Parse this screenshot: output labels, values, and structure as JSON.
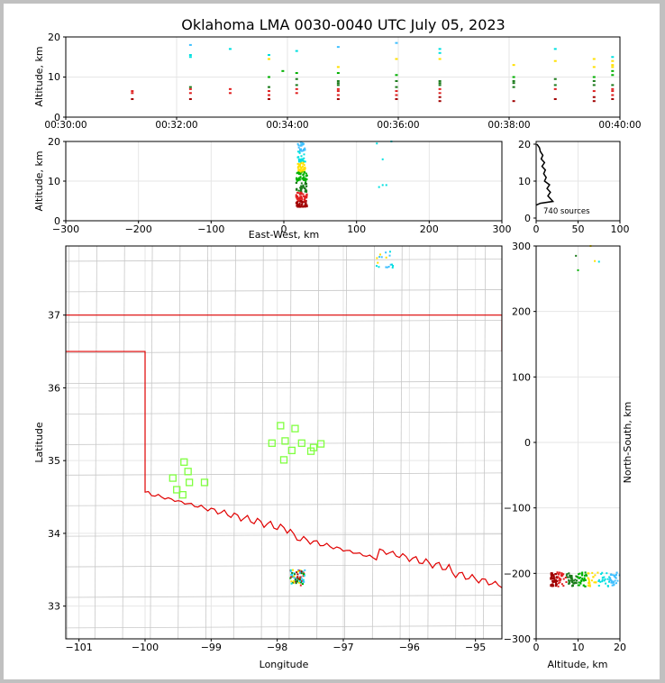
{
  "title": "Oklahoma LMA 0030-0040 UTC July 05, 2023",
  "colors": {
    "background": "#ffffff",
    "frame": "#c0c0c0",
    "state_border": "#e00000",
    "county_border": "#c8c8c8",
    "grid": "#e6e6e6",
    "station_marker": "#80ff40",
    "histogram_line": "#000000"
  },
  "time_panel": {
    "ylabel": "Altitude, km",
    "ytick_labels": [
      "0",
      "10",
      "20"
    ],
    "xtick_labels": [
      "00:30:00",
      "00:32:00",
      "00:34:00",
      "00:36:00",
      "00:38:00",
      "00:40:00"
    ]
  },
  "ew_panel": {
    "ylabel": "Altitude, km",
    "xlabel": "East-West, km",
    "ytick_labels": [
      "0",
      "10",
      "20"
    ],
    "xtick_labels": [
      "−300",
      "−200",
      "−100",
      "0",
      "100",
      "200",
      "300"
    ]
  },
  "hist_panel": {
    "count_label": "740 sources",
    "ytick_labels": [
      "0",
      "10",
      "20"
    ],
    "xtick_labels": [
      "0",
      "50",
      "100"
    ]
  },
  "map_panel": {
    "xlabel": "Longitude",
    "ylabel": "Latitude",
    "ytick_labels": [
      "33",
      "34",
      "35",
      "36",
      "37"
    ],
    "xtick_labels": [
      "−101",
      "−100",
      "−99",
      "−98",
      "−97",
      "−96",
      "−95"
    ]
  },
  "ns_panel": {
    "xlabel": "Altitude, km",
    "ylabel": "North-South, km",
    "ytick_labels": [
      "−300",
      "−200",
      "−100",
      "0",
      "100",
      "200",
      "300"
    ],
    "xtick_labels": [
      "0",
      "10",
      "20"
    ]
  },
  "chart_data": [
    {
      "type": "scatter",
      "name": "time-altitude",
      "xlabel": "",
      "ylabel": "Altitude, km",
      "xlim": [
        "00:30:00",
        "00:40:00"
      ],
      "ylim": [
        0,
        20
      ],
      "grid": true,
      "source_columns": [
        {
          "t": "00:31:12",
          "alt": [
            4.5,
            6.0,
            6.5
          ]
        },
        {
          "t": "00:32:15",
          "alt": [
            4.5,
            6.0,
            7.0,
            7.5,
            15.0,
            15.5,
            18.0
          ]
        },
        {
          "t": "00:32:58",
          "alt": [
            6.0,
            7.0,
            17.0
          ]
        },
        {
          "t": "00:33:40",
          "alt": [
            4.5,
            5.5,
            6.5,
            7.5,
            10.0,
            14.5,
            15.5
          ]
        },
        {
          "t": "00:33:55",
          "alt": [
            11.5
          ]
        },
        {
          "t": "00:34:10",
          "alt": [
            6.0,
            7.0,
            8.0,
            9.5,
            11.0,
            16.5
          ]
        },
        {
          "t": "00:34:55",
          "alt": [
            4.5,
            5.5,
            6.5,
            7.0,
            8.0,
            8.5,
            9.0,
            11.0,
            12.5,
            17.5
          ]
        },
        {
          "t": "00:35:58",
          "alt": [
            4.5,
            5.5,
            6.5,
            7.5,
            9.0,
            10.5,
            14.5,
            18.5
          ]
        },
        {
          "t": "00:36:45",
          "alt": [
            4.0,
            5.0,
            6.0,
            7.0,
            8.0,
            8.5,
            9.0,
            14.5,
            16.0,
            17.0
          ]
        },
        {
          "t": "00:38:05",
          "alt": [
            4.0,
            7.5,
            8.5,
            9.0,
            10.0,
            13.0
          ]
        },
        {
          "t": "00:38:50",
          "alt": [
            4.5,
            7.0,
            8.0,
            9.5,
            14.0,
            17.0
          ]
        },
        {
          "t": "00:39:32",
          "alt": [
            4.0,
            5.0,
            6.5,
            8.0,
            9.0,
            10.0,
            12.5,
            14.5
          ]
        },
        {
          "t": "00:39:52",
          "alt": [
            4.5,
            5.5,
            6.5,
            7.0,
            8.0,
            10.5,
            11.5,
            12.5,
            13.0,
            14.0,
            15.0
          ]
        }
      ]
    },
    {
      "type": "scatter",
      "name": "east-west vs altitude",
      "xlabel": "East-West, km",
      "ylabel": "Altitude, km",
      "xlim": [
        -300,
        300
      ],
      "ylim": [
        0,
        20
      ],
      "grid": true,
      "main_cluster": {
        "ew_range": [
          17,
          32
        ],
        "alt_range": [
          3.5,
          20
        ]
      },
      "minor_points": [
        {
          "ew": 131,
          "alt": 8.5
        },
        {
          "ew": 136,
          "alt": 9.0
        },
        {
          "ew": 141,
          "alt": 9.0
        },
        {
          "ew": 136,
          "alt": 15.5
        },
        {
          "ew": 128,
          "alt": 19.5
        },
        {
          "ew": 148,
          "alt": 20.0
        }
      ]
    },
    {
      "type": "line",
      "name": "altitude histogram",
      "xlim": [
        0,
        100
      ],
      "ylim": [
        0,
        20
      ],
      "total_sources": 740,
      "points": [
        [
          0,
          3.5
        ],
        [
          5,
          4
        ],
        [
          20,
          4.5
        ],
        [
          18,
          5
        ],
        [
          14,
          6
        ],
        [
          17,
          7
        ],
        [
          13,
          8
        ],
        [
          16,
          9
        ],
        [
          10,
          10
        ],
        [
          12,
          11
        ],
        [
          9,
          12
        ],
        [
          11,
          13
        ],
        [
          7,
          14
        ],
        [
          10,
          15
        ],
        [
          6,
          16
        ],
        [
          8,
          17
        ],
        [
          5,
          18
        ],
        [
          4,
          19
        ],
        [
          1,
          20
        ]
      ]
    },
    {
      "type": "scatter",
      "name": "plan view map",
      "xlabel": "Longitude",
      "ylabel": "Latitude",
      "xlim": [
        -101.2,
        -94.6
      ],
      "ylim": [
        32.55,
        37.95
      ],
      "stations": [
        [
          -97.95,
          35.48
        ],
        [
          -97.73,
          35.44
        ],
        [
          -97.88,
          35.27
        ],
        [
          -98.08,
          35.24
        ],
        [
          -97.63,
          35.24
        ],
        [
          -97.78,
          35.14
        ],
        [
          -97.45,
          35.18
        ],
        [
          -97.34,
          35.23
        ],
        [
          -97.49,
          35.13
        ],
        [
          -97.9,
          35.01
        ],
        [
          -99.41,
          34.98
        ],
        [
          -99.35,
          34.85
        ],
        [
          -99.58,
          34.76
        ],
        [
          -99.33,
          34.7
        ],
        [
          -99.1,
          34.7
        ],
        [
          -99.52,
          34.6
        ],
        [
          -99.43,
          34.53
        ]
      ],
      "source_clusters": [
        {
          "lon_range": [
            -97.8,
            -97.58
          ],
          "lat_range": [
            33.28,
            33.5
          ]
        },
        {
          "lon_range": [
            -96.5,
            -96.22
          ],
          "lat_range": [
            37.65,
            37.9
          ]
        }
      ]
    },
    {
      "type": "scatter",
      "name": "north-south vs altitude",
      "xlabel": "Altitude, km",
      "ylabel": "North-South, km",
      "xlim": [
        0,
        20
      ],
      "ylim": [
        -300,
        300
      ],
      "main_cluster": {
        "alt_range": [
          3.5,
          20
        ],
        "ns_range": [
          -220,
          -198
        ]
      },
      "minor_points": [
        {
          "alt": 9.5,
          "ns": 285
        },
        {
          "alt": 10,
          "ns": 263
        },
        {
          "alt": 14,
          "ns": 277
        },
        {
          "alt": 15,
          "ns": 276
        },
        {
          "alt": 13,
          "ns": 300
        }
      ]
    }
  ]
}
